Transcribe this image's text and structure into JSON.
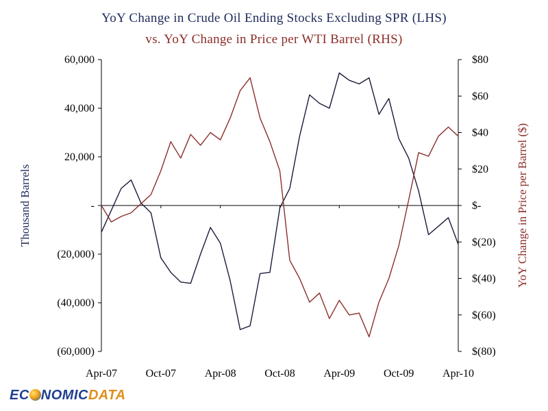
{
  "title_line1": "YoY Change in Crude Oil Ending Stocks Excluding SPR (LHS)",
  "title_line2": "vs. YoY Change in Price per WTI Barrel (RHS)",
  "logo": {
    "part1": "EC",
    "part2": "NOMIC",
    "part3": "DATA"
  },
  "colors": {
    "stocks": "#1a1a3a",
    "price": "#8b2e2a",
    "left_axis_label": "#1f2a5a",
    "right_axis_label": "#8b2e2a"
  },
  "chart_data": {
    "type": "line",
    "x": [
      "Apr-07",
      "May-07",
      "Jun-07",
      "Jul-07",
      "Aug-07",
      "Sep-07",
      "Oct-07",
      "Nov-07",
      "Dec-07",
      "Jan-08",
      "Feb-08",
      "Mar-08",
      "Apr-08",
      "May-08",
      "Jun-08",
      "Jul-08",
      "Aug-08",
      "Sep-08",
      "Oct-08",
      "Nov-08",
      "Dec-08",
      "Jan-09",
      "Feb-09",
      "Mar-09",
      "Apr-09",
      "May-09",
      "Jun-09",
      "Jul-09",
      "Aug-09",
      "Sep-09",
      "Oct-09",
      "Nov-09",
      "Dec-09",
      "Jan-10",
      "Feb-10",
      "Mar-10",
      "Apr-10"
    ],
    "x_tick_labels": [
      "Apr-07",
      "Oct-07",
      "Apr-08",
      "Oct-08",
      "Apr-09",
      "Oct-09",
      "Apr-10"
    ],
    "series": [
      {
        "axis": "left",
        "values": [
          -11000,
          -2000,
          7000,
          10500,
          1000,
          -3000,
          -21500,
          -27500,
          -31500,
          -32000,
          -20000,
          -9000,
          -15500,
          -31000,
          -51000,
          -49500,
          -28000,
          -27500,
          -1000,
          7000,
          28500,
          45500,
          42000,
          40000,
          54500,
          51500,
          50000,
          52500,
          37500,
          44000,
          27500,
          19500,
          6000,
          -12000,
          -8500,
          -5000,
          -16000
        ]
      },
      {
        "axis": "right",
        "values": [
          0,
          -9,
          -6,
          -4,
          1,
          6,
          19,
          35,
          26,
          39,
          33,
          40,
          36,
          48,
          63,
          70,
          48,
          35,
          19,
          -30,
          -40,
          -53,
          -48,
          -62,
          -52,
          -60,
          -59,
          -72,
          -53,
          -40,
          -22,
          3,
          29,
          27,
          38,
          43,
          38
        ]
      }
    ],
    "y_left": {
      "label": "Thousand Barrels",
      "lim": [
        -60000,
        60000
      ],
      "ticks": [
        60000,
        40000,
        20000,
        0,
        -20000,
        -40000,
        -60000
      ],
      "tick_labels": [
        "60,000",
        "40,000",
        "20,000",
        "-",
        "(20,000)",
        "(40,000)",
        "(60,000)"
      ]
    },
    "y_right": {
      "label": "YoY Change in Price per Barrel ($)",
      "lim": [
        -80,
        80
      ],
      "ticks": [
        80,
        60,
        40,
        20,
        0,
        -20,
        -40,
        -60,
        -80
      ],
      "tick_labels": [
        "$80",
        "$60",
        "$40",
        "$20",
        "$-",
        "$(20)",
        "$(40)",
        "$(60)",
        "$(80)"
      ]
    },
    "grid": false,
    "legend": "none"
  }
}
